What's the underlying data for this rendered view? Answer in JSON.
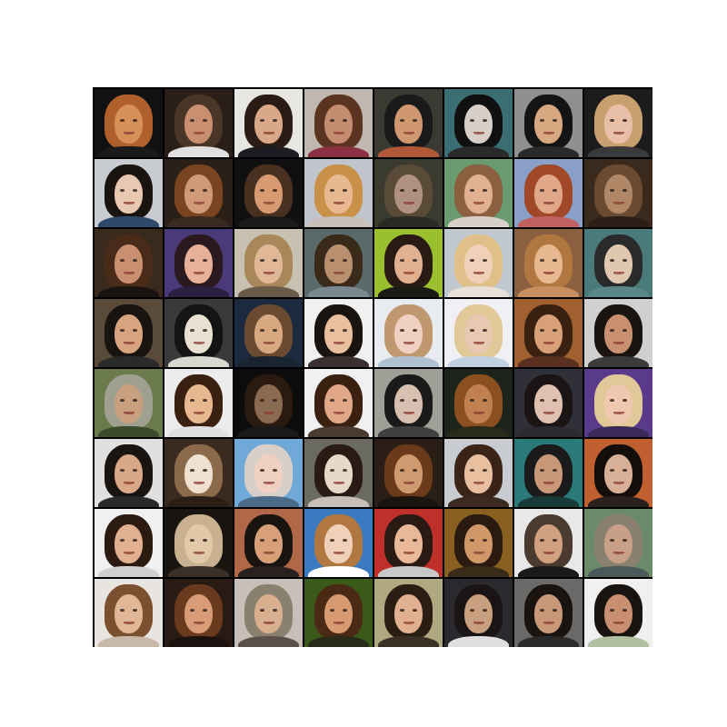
{
  "figure": {
    "rows": 8,
    "cols": 8,
    "tiles": [
      {
        "bg": "#111114",
        "hair": "#b0602a",
        "face": "#d69058",
        "body": "#1a1a1a"
      },
      {
        "bg": "#2a1f18",
        "hair": "#4a3626",
        "face": "#c89070",
        "body": "#e0e0e0"
      },
      {
        "bg": "#e8e6e2",
        "hair": "#2a1c14",
        "face": "#d8a888",
        "body": "#1c1c22"
      },
      {
        "bg": "#c0b8b0",
        "hair": "#5a3420",
        "face": "#c48c70",
        "body": "#8a3040"
      },
      {
        "bg": "#3a3a32",
        "hair": "#1a1a1a",
        "face": "#d09870",
        "body": "#b05838"
      },
      {
        "bg": "#3a6e72",
        "hair": "#101010",
        "face": "#d8d0c8",
        "body": "#2a2a2a"
      },
      {
        "bg": "#909090",
        "hair": "#141414",
        "face": "#d8a880",
        "body": "#2a2a2a"
      },
      {
        "bg": "#1c1c1c",
        "hair": "#c8a070",
        "face": "#e8c0a8",
        "body": "#3a3a3a"
      },
      {
        "bg": "#c8ccd0",
        "hair": "#1a1410",
        "face": "#e8c8b0",
        "body": "#2e4a6a"
      },
      {
        "bg": "#2a2018",
        "hair": "#7a4420",
        "face": "#d09a78",
        "body": "#3a2a20"
      },
      {
        "bg": "#101010",
        "hair": "#4a3020",
        "face": "#d89a70",
        "body": "#1a1a1a"
      },
      {
        "bg": "#c0c4cc",
        "hair": "#c89048",
        "face": "#e8b890",
        "body": "#c8c0b8"
      },
      {
        "bg": "#3a3a2e",
        "hair": "#5a4a38",
        "face": "#b09080",
        "body": "#2a2a24"
      },
      {
        "bg": "#6a9a70",
        "hair": "#8a6040",
        "face": "#e0b090",
        "body": "#d8d0c8"
      },
      {
        "bg": "#8aa0c8",
        "hair": "#a04828",
        "face": "#e0a888",
        "body": "#c06060"
      },
      {
        "bg": "#3a2a1e",
        "hair": "#6a4a30",
        "face": "#b08868",
        "body": "#2a1e16"
      },
      {
        "bg": "#3a2a1e",
        "hair": "#4a2a18",
        "face": "#c89070",
        "body": "#1a1410"
      },
      {
        "bg": "#4a3a7a",
        "hair": "#2a1a20",
        "face": "#e8b098",
        "body": "#2a2040"
      },
      {
        "bg": "#c8c0b0",
        "hair": "#a8885a",
        "face": "#e0b898",
        "body": "#6a5a4a"
      },
      {
        "bg": "#5a6a6a",
        "hair": "#3a2a1a",
        "face": "#b89070",
        "body": "#7a8890"
      },
      {
        "bg": "#9ac030",
        "hair": "#2a1a14",
        "face": "#e0b090",
        "body": "#1a1a14"
      },
      {
        "bg": "#c0c8d0",
        "hair": "#e0c088",
        "face": "#f0d0b8",
        "body": "#e8e0d8"
      },
      {
        "bg": "#8a6040",
        "hair": "#b07840",
        "face": "#e8b890",
        "body": "#c89060"
      },
      {
        "bg": "#4a7a7a",
        "hair": "#2a2a2a",
        "face": "#e0c8b0",
        "body": "#5a8888"
      },
      {
        "bg": "#5a4a3a",
        "hair": "#1a1410",
        "face": "#d8a480",
        "body": "#2a2a2a"
      },
      {
        "bg": "#3a3a3a",
        "hair": "#141414",
        "face": "#e8e0d0",
        "body": "#d8d8d0"
      },
      {
        "bg": "#1c2a40",
        "hair": "#6a4a30",
        "face": "#d8a880",
        "body": "#1a2430"
      },
      {
        "bg": "#f0f0f0",
        "hair": "#1a1410",
        "face": "#e8c0a0",
        "body": "#3a3030"
      },
      {
        "bg": "#e8ecf0",
        "hair": "#c09870",
        "face": "#f0d0c0",
        "body": "#b0c0d0"
      },
      {
        "bg": "#f0f0f4",
        "hair": "#e0c898",
        "face": "#e8c8b0",
        "body": "#c0d0e0"
      },
      {
        "bg": "#a06030",
        "hair": "#3a2010",
        "face": "#d8a078",
        "body": "#5a3020"
      },
      {
        "bg": "#d0d0d0",
        "hair": "#1a1410",
        "face": "#c89070",
        "body": "#3a3a3a"
      },
      {
        "bg": "#6a7a4a",
        "hair": "#a0a090",
        "face": "#c8a080",
        "body": "#3a4a2a"
      },
      {
        "bg": "#ececec",
        "hair": "#3a2010",
        "face": "#e8b890",
        "body": "#e0e0e0"
      },
      {
        "bg": "#0c0c0c",
        "hair": "#2a1a10",
        "face": "#8a6a50",
        "body": "#1a1a1a"
      },
      {
        "bg": "#f0f0f0",
        "hair": "#3a2010",
        "face": "#e0a888",
        "body": "#4a3a30"
      },
      {
        "bg": "#a0a098",
        "hair": "#1a1a1a",
        "face": "#d8c0b0",
        "body": "#404040"
      },
      {
        "bg": "#1c241c",
        "hair": "#8a5020",
        "face": "#c08050",
        "body": "#2a2a1a"
      },
      {
        "bg": "#303038",
        "hair": "#1a1414",
        "face": "#e0c0b0",
        "body": "#2a2a30"
      },
      {
        "bg": "#5a3a8a",
        "hair": "#e0c898",
        "face": "#f0c8b0",
        "body": "#3a2a5a"
      },
      {
        "bg": "#e0e0e0",
        "hair": "#1a1410",
        "face": "#d8a888",
        "body": "#2a2a2a"
      },
      {
        "bg": "#3a2a20",
        "hair": "#8a6a4a",
        "face": "#f0e0d0",
        "body": "#2a1e16"
      },
      {
        "bg": "#70a8d8",
        "hair": "#d8d0c8",
        "face": "#f0d0c0",
        "body": "#4a6a8a"
      },
      {
        "bg": "#6a6a60",
        "hair": "#2a1a14",
        "face": "#e8d8c8",
        "body": "#c8c0b8"
      },
      {
        "bg": "#2a1e16",
        "hair": "#6a3a1a",
        "face": "#d09a70",
        "body": "#1a140e"
      },
      {
        "bg": "#c8ccd0",
        "hair": "#3a2418",
        "face": "#e8c0a0",
        "body": "#3a2a22"
      },
      {
        "bg": "#2a7a7a",
        "hair": "#1a1a1a",
        "face": "#c89878",
        "body": "#1a3a3a"
      },
      {
        "bg": "#c06030",
        "hair": "#140e0a",
        "face": "#d8b098",
        "body": "#2a2020"
      },
      {
        "bg": "#f0f0f0",
        "hair": "#2a1a10",
        "face": "#e0b090",
        "body": "#d0d0d0"
      },
      {
        "bg": "#1a1410",
        "hair": "#c8b090",
        "face": "#e0c8a8",
        "body": "#3a3028"
      },
      {
        "bg": "#b06848",
        "hair": "#1a1410",
        "face": "#d8a078",
        "body": "#2a2020"
      },
      {
        "bg": "#3a7ac0",
        "hair": "#b07840",
        "face": "#f0d0b8",
        "body": "#ffffff"
      },
      {
        "bg": "#c0302a",
        "hair": "#2a1a14",
        "face": "#e8b898",
        "body": "#c8c8c8"
      },
      {
        "bg": "#8a6020",
        "hair": "#2a1a10",
        "face": "#d09868",
        "body": "#3a2a18"
      },
      {
        "bg": "#e8e8e8",
        "hair": "#4a3a30",
        "face": "#d0a080",
        "body": "#1a1a1a"
      },
      {
        "bg": "#6a8a6a",
        "hair": "#8a8070",
        "face": "#c8a088",
        "body": "#4a5a5a"
      },
      {
        "bg": "#e8e4e0",
        "hair": "#7a5030",
        "face": "#e0b898",
        "body": "#c8b8a8"
      },
      {
        "bg": "#2a1a14",
        "hair": "#6a3a1e",
        "face": "#d89c78",
        "body": "#1a120e"
      },
      {
        "bg": "#c8c0b8",
        "hair": "#8a8070",
        "face": "#d8b090",
        "body": "#5a5048"
      },
      {
        "bg": "#3a5a1a",
        "hair": "#4a2a14",
        "face": "#d89a70",
        "body": "#2a2a1a"
      },
      {
        "bg": "#b0a880",
        "hair": "#2a1e14",
        "face": "#e0b090",
        "body": "#3a3024"
      },
      {
        "bg": "#2a2a2e",
        "hair": "#1a1414",
        "face": "#c8a080",
        "body": "#e0e0e0"
      },
      {
        "bg": "#6a6a68",
        "hair": "#1a1410",
        "face": "#c89878",
        "body": "#2a2a2a"
      },
      {
        "bg": "#f0f0f0",
        "hair": "#1a1410",
        "face": "#c89070",
        "body": "#b0c0a0"
      }
    ]
  }
}
